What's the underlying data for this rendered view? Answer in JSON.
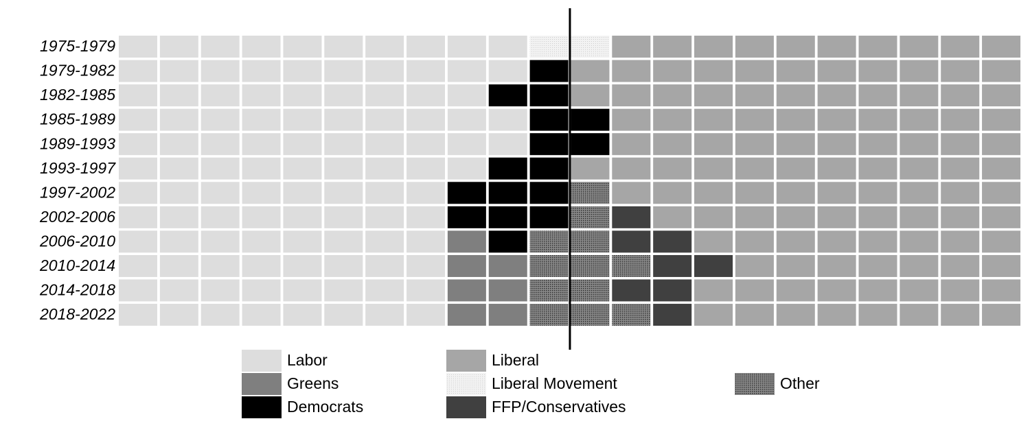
{
  "chart_data": {
    "type": "waffle",
    "categories": [
      "1975-1979",
      "1979-1982",
      "1982-1985",
      "1985-1989",
      "1989-1993",
      "1993-1997",
      "1997-2002",
      "2002-2006",
      "2006-2010",
      "2010-2014",
      "2014-2018",
      "2018-2022"
    ],
    "series": [
      {
        "name": "Labor",
        "color": "#dddddd",
        "values": [
          10,
          10,
          9,
          10,
          10,
          9,
          8,
          8,
          8,
          8,
          8,
          8
        ]
      },
      {
        "name": "Greens",
        "color": "#7f7f7f",
        "values": [
          0,
          0,
          0,
          0,
          0,
          0,
          0,
          0,
          1,
          2,
          2,
          2
        ]
      },
      {
        "name": "Democrats",
        "color": "#000000",
        "values": [
          0,
          1,
          2,
          2,
          2,
          2,
          3,
          3,
          1,
          0,
          0,
          0
        ]
      },
      {
        "name": "Liberal Movement",
        "color": "#eeeeee",
        "pattern": "stipple",
        "values": [
          2,
          0,
          0,
          0,
          0,
          0,
          0,
          0,
          0,
          0,
          0,
          0
        ]
      },
      {
        "name": "Other",
        "color": "#6a6a6a",
        "pattern": "stipple",
        "values": [
          0,
          0,
          0,
          0,
          0,
          0,
          1,
          1,
          2,
          3,
          2,
          3
        ]
      },
      {
        "name": "FFP/Conservatives",
        "color": "#404040",
        "values": [
          0,
          0,
          0,
          0,
          0,
          0,
          0,
          1,
          2,
          2,
          2,
          1
        ]
      },
      {
        "name": "Liberal",
        "color": "#a6a6a6",
        "values": [
          10,
          11,
          11,
          10,
          10,
          11,
          10,
          9,
          8,
          7,
          8,
          8
        ]
      }
    ]
  }
}
